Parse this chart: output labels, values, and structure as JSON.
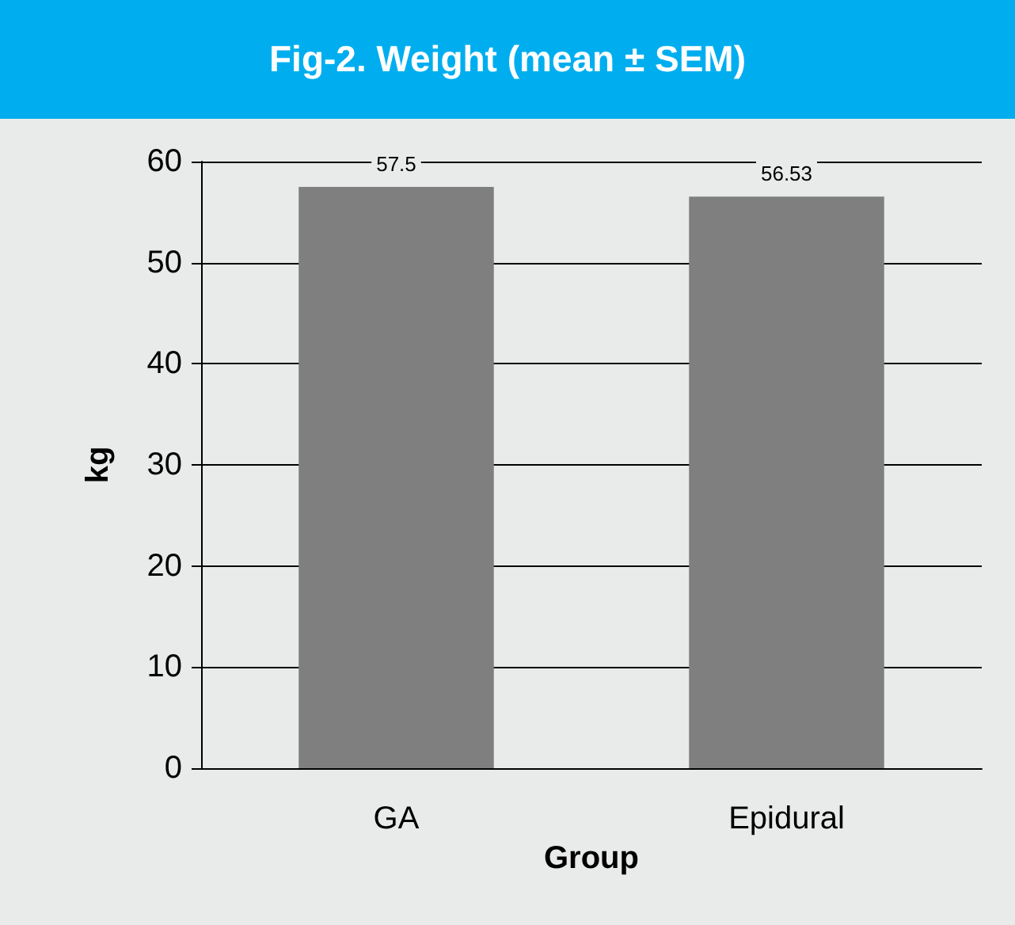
{
  "chart_data": {
    "type": "bar",
    "title": "Fig-2. Weight (mean ± SEM)",
    "xlabel": "Group",
    "ylabel": "kg",
    "categories": [
      "GA",
      "Epidural"
    ],
    "values": [
      57.5,
      56.53
    ],
    "color": "#7f7f7f",
    "ylim": [
      0,
      60
    ],
    "yticks": [
      0,
      10,
      20,
      30,
      40,
      50,
      60
    ],
    "grid": "y",
    "data_labels": true
  }
}
